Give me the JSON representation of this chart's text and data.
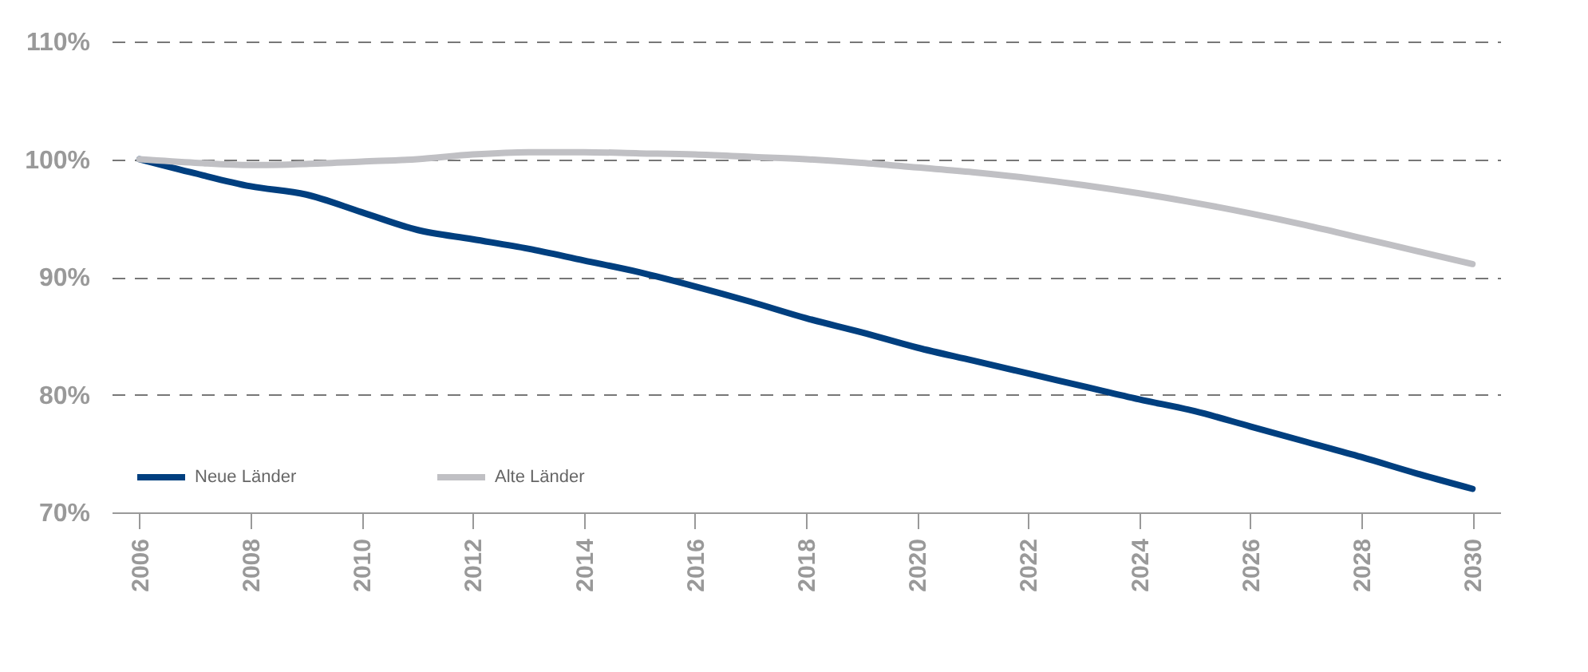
{
  "chart_data": {
    "type": "line",
    "x": [
      2006,
      2007,
      2008,
      2009,
      2010,
      2011,
      2012,
      2013,
      2014,
      2015,
      2016,
      2017,
      2018,
      2019,
      2020,
      2021,
      2022,
      2023,
      2024,
      2025,
      2026,
      2027,
      2028,
      2029,
      2030
    ],
    "series": [
      {
        "name": "Neue Länder",
        "color": "#003f7f",
        "values": [
          100,
          98.8,
          97.7,
          97,
          95.5,
          94,
          93.2,
          92.4,
          91.4,
          90.4,
          89.2,
          87.9,
          86.5,
          85.3,
          84,
          82.9,
          81.8,
          80.7,
          79.6,
          78.6,
          77.3,
          76,
          74.7,
          73.3,
          72
        ]
      },
      {
        "name": "Alte Länder",
        "color": "#c0c0c4",
        "values": [
          100,
          99.7,
          99.5,
          99.6,
          99.8,
          100,
          100.4,
          100.6,
          100.6,
          100.5,
          100.4,
          100.2,
          100,
          99.7,
          99.3,
          98.9,
          98.4,
          97.8,
          97.1,
          96.3,
          95.4,
          94.4,
          93.3,
          92.2,
          91.1
        ]
      }
    ],
    "xlim": [
      2005.5,
      2030.5
    ],
    "xticks": [
      2006,
      2008,
      2010,
      2012,
      2014,
      2016,
      2018,
      2020,
      2022,
      2024,
      2026,
      2028,
      2030
    ],
    "ylim": [
      70,
      110
    ],
    "yticks": [
      {
        "value": 70,
        "label": "70%"
      },
      {
        "value": 80,
        "label": "80%"
      },
      {
        "value": 90,
        "label": "90%"
      },
      {
        "value": 100,
        "label": "100%"
      },
      {
        "value": 110,
        "label": "110%"
      }
    ],
    "grid": "y",
    "legend": "bottom left",
    "line_style": "solid",
    "marker": "none"
  }
}
